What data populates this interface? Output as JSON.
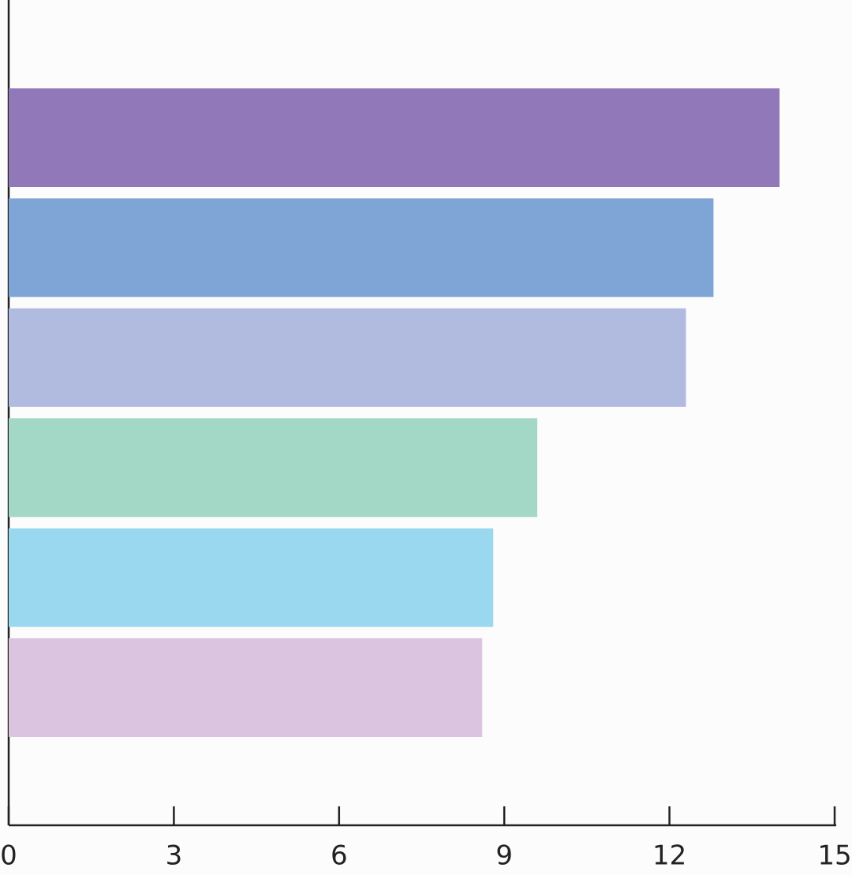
{
  "chart_data": {
    "type": "barh",
    "categories": [
      null,
      null,
      null,
      null,
      null,
      null
    ],
    "values": [
      14.0,
      12.8,
      12.3,
      9.6,
      8.8,
      8.6
    ],
    "colors": [
      "#9178b8",
      "#7fa4d6",
      "#b1bbe0",
      "#a3d7c6",
      "#99d8ef",
      "#dbc4e0"
    ],
    "xlim": [
      0,
      15
    ],
    "xticks": [
      0,
      3,
      6,
      9,
      12,
      15
    ]
  }
}
